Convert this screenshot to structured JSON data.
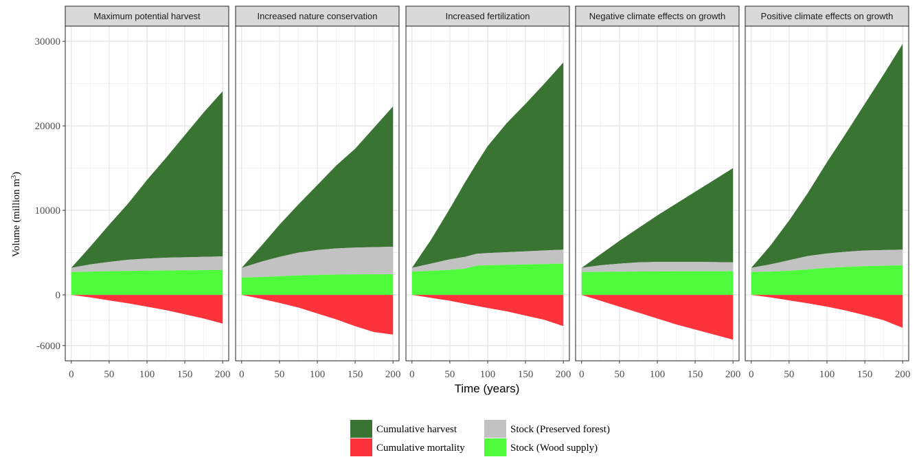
{
  "chart_data": {
    "type": "area",
    "facet_label_fill": "#d9d9d9",
    "x_label": "Time (years)",
    "y_label": "Volume (million m",
    "y_label_sup": "3",
    "y_label_end": ")",
    "x_ticks": [
      0,
      50,
      100,
      150,
      200
    ],
    "x_tick_labels": [
      "0",
      "50",
      "100",
      "150",
      "200"
    ],
    "y_ticks": [
      -6000,
      0,
      10000,
      20000,
      30000
    ],
    "y_tick_labels": [
      "-6000",
      "0",
      "10000",
      "20000",
      "30000"
    ],
    "xlim": [
      -8,
      208
    ],
    "ylim": [
      -7800,
      31800
    ],
    "grid": true,
    "legend_position": "bottom",
    "series_colors": {
      "harvest": "#3a7433",
      "preserved": "#c2c2c2",
      "wood": "#4efc3b",
      "mortality": "#fd333b"
    },
    "legend": [
      {
        "key": "harvest",
        "label": "Cumulative harvest"
      },
      {
        "key": "mortality",
        "label": "Cumulative mortality"
      },
      {
        "key": "preserved",
        "label": "Stock (Preserved forest)"
      },
      {
        "key": "wood",
        "label": "Stock (Wood supply)"
      }
    ],
    "panels": [
      {
        "title": "Maximum potential harvest",
        "x": [
          0,
          25,
          50,
          75,
          100,
          125,
          150,
          175,
          200
        ],
        "wood_top": [
          2700,
          2750,
          2800,
          2830,
          2860,
          2880,
          2900,
          2920,
          2950
        ],
        "preserved_top": [
          3200,
          3600,
          3900,
          4150,
          4300,
          4400,
          4450,
          4500,
          4550
        ],
        "harvest_top": [
          3200,
          5700,
          8300,
          10800,
          13600,
          16200,
          18900,
          21600,
          24100
        ],
        "mortality_bottom": [
          0,
          -300,
          -650,
          -1000,
          -1400,
          -1800,
          -2300,
          -2800,
          -3400
        ]
      },
      {
        "title": "Increased nature conservation",
        "x": [
          0,
          25,
          50,
          75,
          100,
          125,
          150,
          175,
          200
        ],
        "wood_top": [
          2050,
          2100,
          2200,
          2300,
          2350,
          2400,
          2420,
          2440,
          2450
        ],
        "preserved_top": [
          3200,
          3900,
          4500,
          5000,
          5300,
          5500,
          5600,
          5650,
          5700
        ],
        "harvest_top": [
          3200,
          5700,
          8300,
          10700,
          13000,
          15300,
          17300,
          19800,
          22300
        ],
        "mortality_bottom": [
          0,
          -450,
          -950,
          -1500,
          -2200,
          -2900,
          -3700,
          -4400,
          -4700
        ]
      },
      {
        "title": "Increased fertilization",
        "x": [
          0,
          25,
          50,
          70,
          85,
          100,
          125,
          150,
          175,
          200
        ],
        "wood_top": [
          2750,
          2850,
          2950,
          3100,
          3450,
          3500,
          3550,
          3600,
          3650,
          3700
        ],
        "preserved_top": [
          3200,
          3700,
          4200,
          4500,
          4850,
          4950,
          5050,
          5150,
          5250,
          5350
        ],
        "harvest_top": [
          3200,
          6500,
          10200,
          13300,
          15500,
          17600,
          20300,
          22600,
          25000,
          27500
        ],
        "mortality_bottom": [
          0,
          -350,
          -700,
          -1050,
          -1300,
          -1550,
          -1950,
          -2450,
          -2950,
          -3700
        ]
      },
      {
        "title": "Negative climate effects on growth",
        "x": [
          0,
          25,
          50,
          75,
          100,
          125,
          150,
          175,
          200
        ],
        "wood_top": [
          2700,
          2720,
          2740,
          2760,
          2780,
          2790,
          2800,
          2800,
          2800
        ],
        "preserved_top": [
          3200,
          3500,
          3700,
          3850,
          3900,
          3900,
          3900,
          3880,
          3850
        ],
        "harvest_top": [
          3200,
          4800,
          6400,
          7900,
          9400,
          10800,
          12200,
          13600,
          15000
        ],
        "mortality_bottom": [
          0,
          -700,
          -1400,
          -2100,
          -2800,
          -3500,
          -4100,
          -4700,
          -5300
        ]
      },
      {
        "title": "Positive climate effects on growth",
        "x": [
          0,
          25,
          50,
          75,
          100,
          125,
          150,
          175,
          200
        ],
        "wood_top": [
          2700,
          2750,
          2850,
          3000,
          3200,
          3300,
          3400,
          3450,
          3500
        ],
        "preserved_top": [
          3200,
          3600,
          4100,
          4600,
          4900,
          5100,
          5250,
          5300,
          5350
        ],
        "harvest_top": [
          3200,
          5800,
          8800,
          12100,
          15700,
          19100,
          22600,
          26100,
          29700
        ],
        "mortality_bottom": [
          0,
          -300,
          -650,
          -1000,
          -1400,
          -1850,
          -2400,
          -3000,
          -3900
        ]
      }
    ]
  }
}
